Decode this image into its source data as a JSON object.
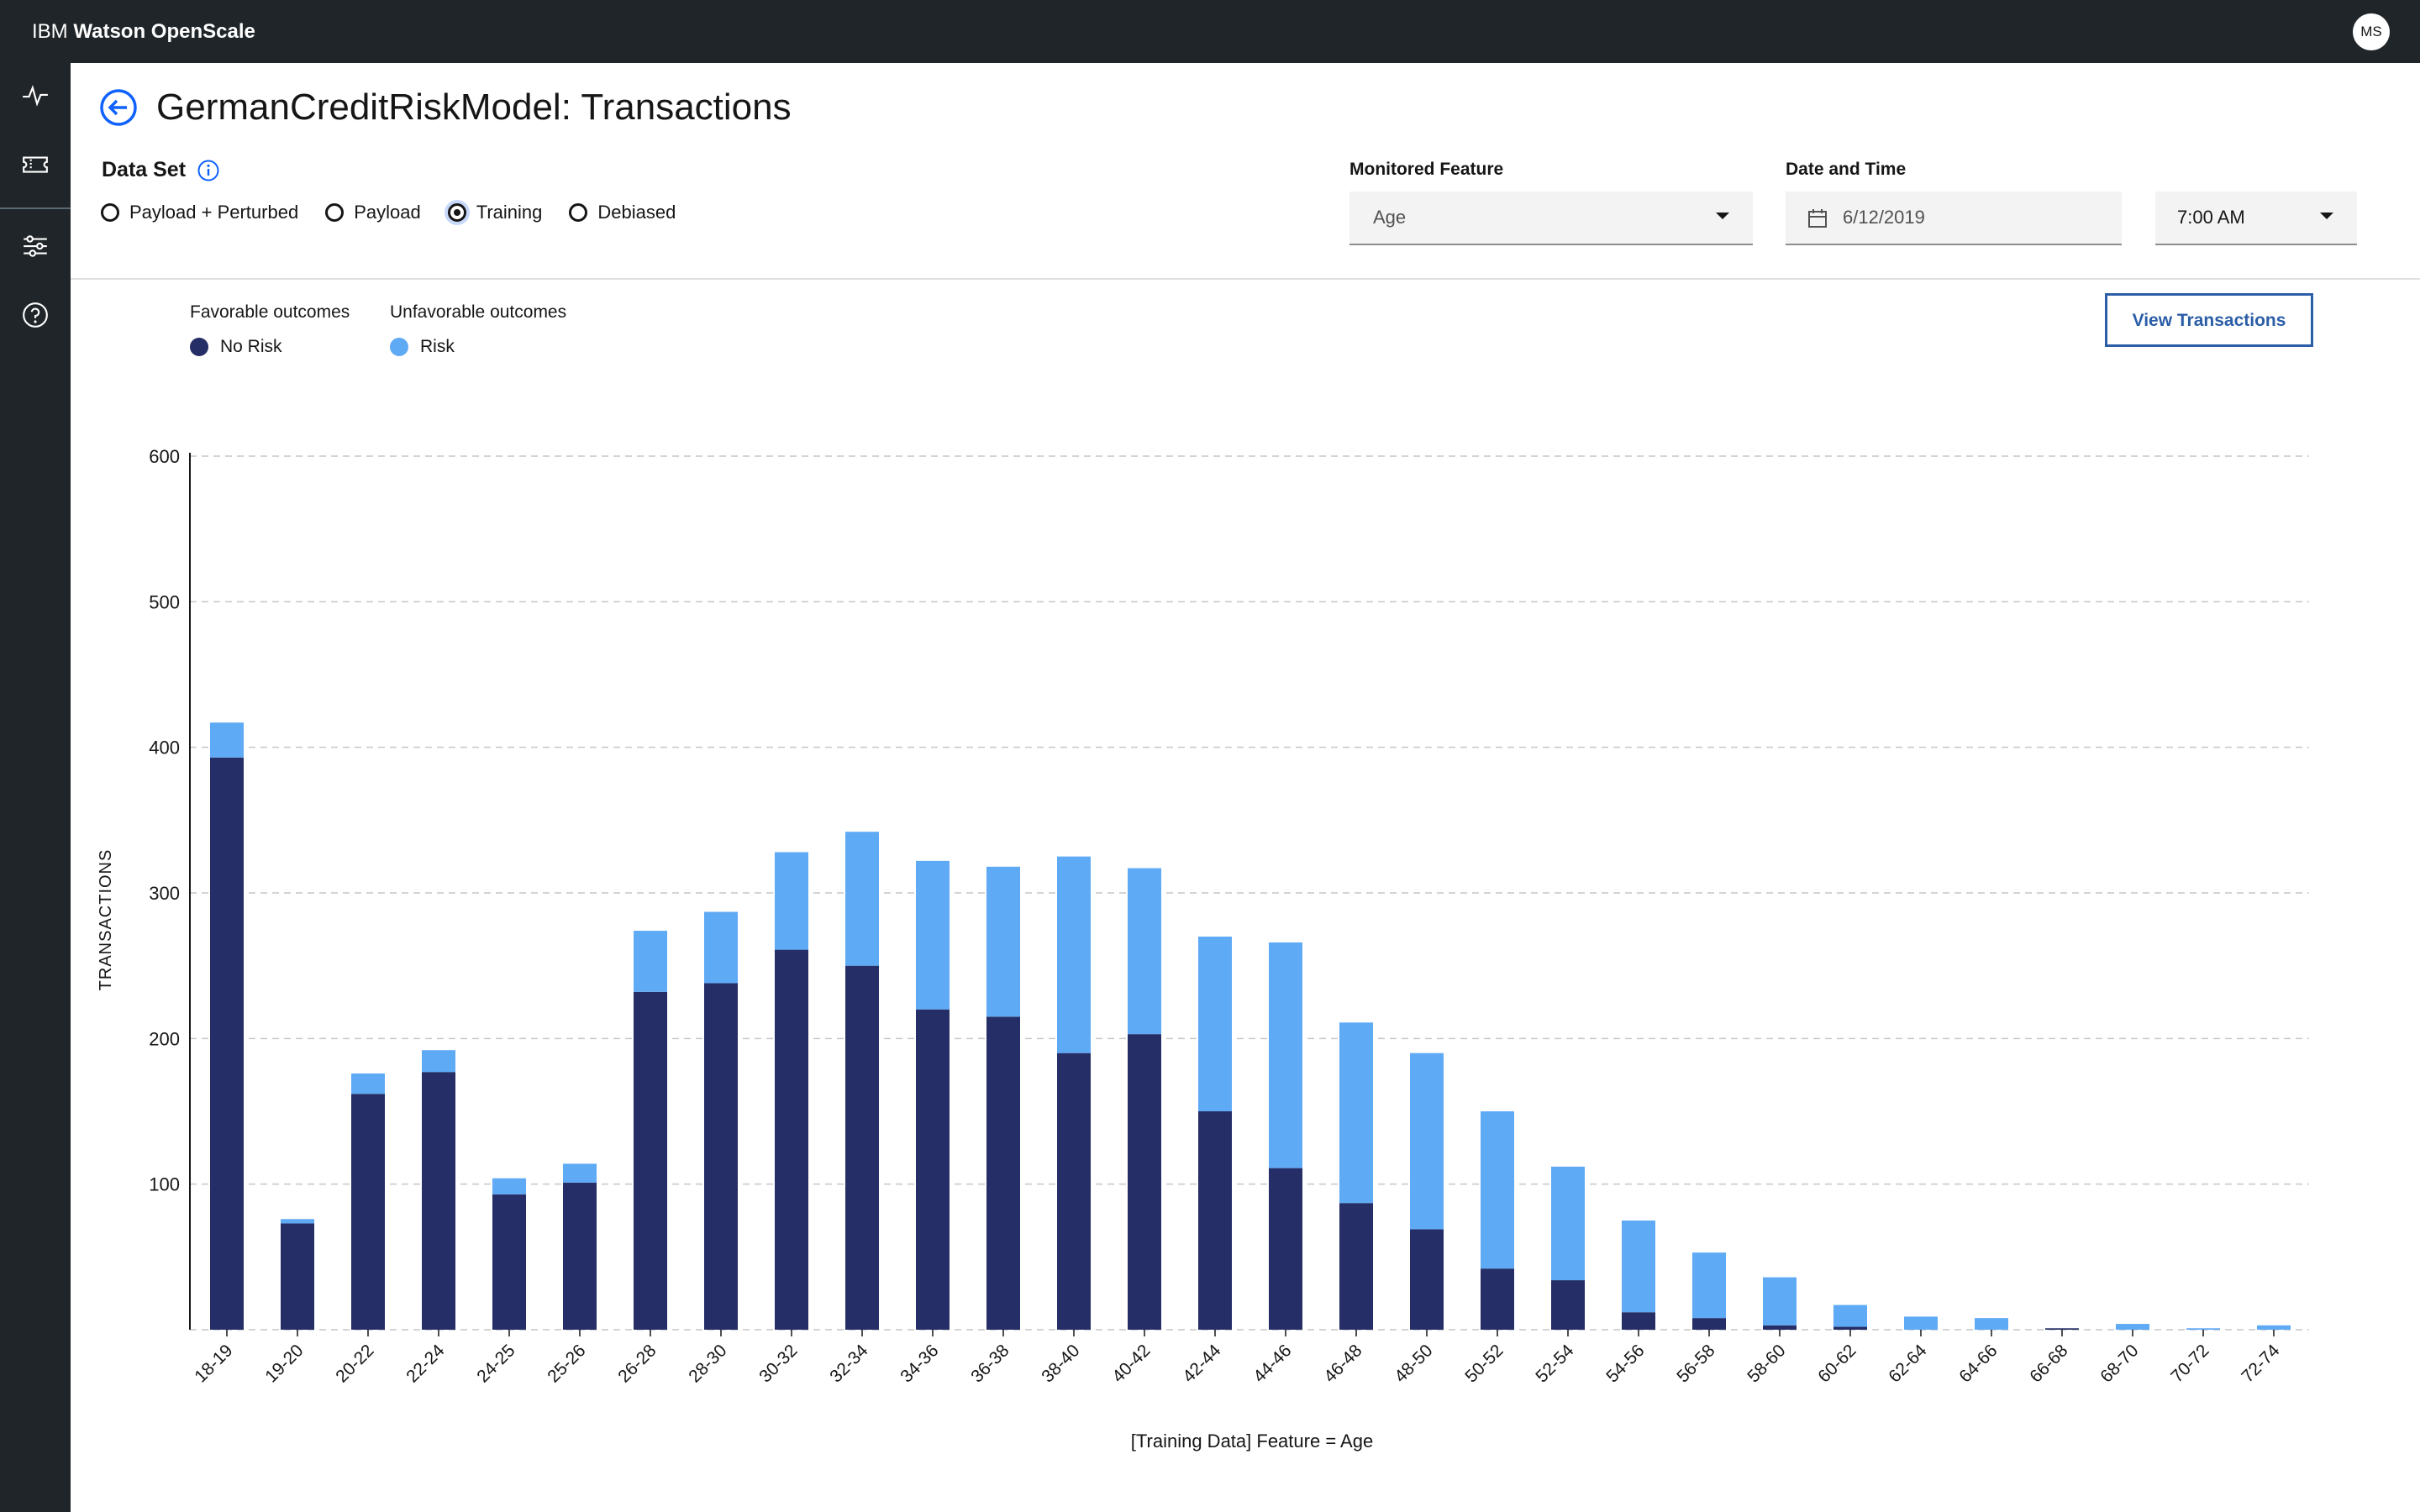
{
  "app": {
    "brand": "IBM",
    "product": "Watson OpenScale",
    "user_initials": "MS"
  },
  "sidebar": {
    "items": [
      {
        "icon": "activity-icon"
      },
      {
        "icon": "ticket-icon"
      },
      {
        "icon": "sliders-icon"
      },
      {
        "icon": "help-icon"
      }
    ]
  },
  "page": {
    "title": "GermanCreditRiskModel: Transactions"
  },
  "dataset": {
    "label": "Data Set",
    "options": [
      {
        "label": "Payload + Perturbed",
        "checked": false
      },
      {
        "label": "Payload",
        "checked": false
      },
      {
        "label": "Training",
        "checked": true
      },
      {
        "label": "Debiased",
        "checked": false
      }
    ]
  },
  "monitored_feature": {
    "label": "Monitored Feature",
    "value": "Age"
  },
  "date_time": {
    "label": "Date and Time",
    "date": "6/12/2019",
    "time": "7:00 AM"
  },
  "legend": {
    "favorable_title": "Favorable outcomes",
    "unfavorable_title": "Unfavorable outcomes",
    "favorable_item": "No Risk",
    "unfavorable_item": "Risk"
  },
  "buttons": {
    "view_transactions": "View Transactions"
  },
  "colors": {
    "no_risk": "#252e66",
    "risk": "#5faaf5",
    "accent": "#0f62fe",
    "shell": "#1f2529"
  },
  "chart_data": {
    "type": "bar",
    "stacked": true,
    "categories": [
      "18-19",
      "19-20",
      "20-22",
      "22-24",
      "24-25",
      "25-26",
      "26-28",
      "28-30",
      "30-32",
      "32-34",
      "34-36",
      "36-38",
      "38-40",
      "40-42",
      "42-44",
      "44-46",
      "46-48",
      "48-50",
      "50-52",
      "52-54",
      "54-56",
      "56-58",
      "58-60",
      "60-62",
      "62-64",
      "64-66",
      "66-68",
      "68-70",
      "70-72",
      "72-74"
    ],
    "series": [
      {
        "name": "No Risk",
        "values": [
          393,
          73,
          162,
          177,
          93,
          101,
          232,
          238,
          261,
          250,
          220,
          215,
          190,
          203,
          150,
          111,
          87,
          69,
          42,
          34,
          12,
          8,
          3,
          2,
          0,
          0,
          1,
          0,
          0,
          0
        ]
      },
      {
        "name": "Risk",
        "values": [
          24,
          3,
          14,
          15,
          11,
          13,
          42,
          49,
          67,
          92,
          102,
          103,
          135,
          114,
          120,
          155,
          124,
          121,
          108,
          78,
          63,
          45,
          33,
          15,
          9,
          8,
          0,
          4,
          1,
          3
        ]
      }
    ],
    "xlabel": "[Training Data] Feature = Age",
    "ylabel": "TRANSACTIONS",
    "ylim": [
      0,
      600
    ],
    "yticks": [
      100,
      200,
      300,
      400,
      500,
      600
    ],
    "grid": true,
    "legend": "top-left"
  }
}
